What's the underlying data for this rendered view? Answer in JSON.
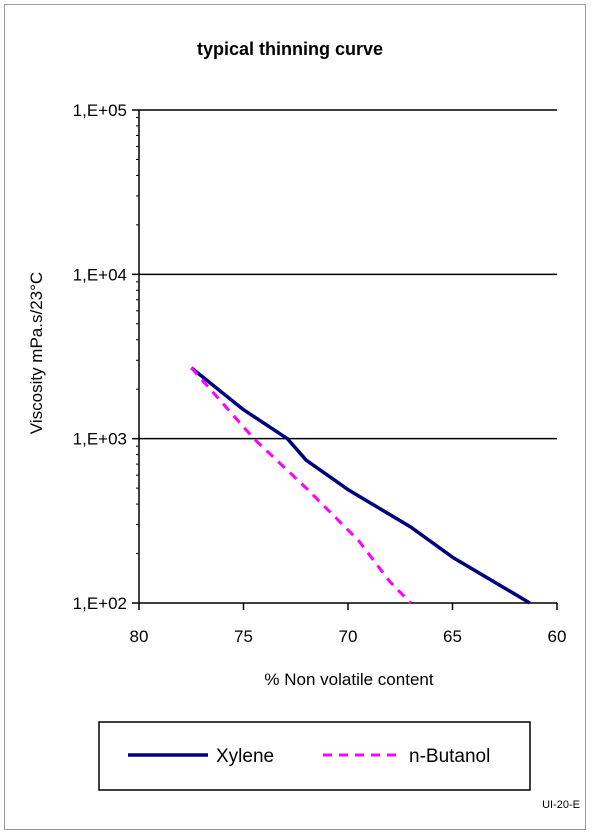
{
  "chart_data": {
    "type": "line",
    "title": "typical thinning curve",
    "xlabel": "% Non volatile content",
    "ylabel": "Viscosity mPa.s/23°C",
    "x_ticks": [
      80,
      75,
      70,
      65,
      60
    ],
    "y_ticks": [
      100,
      1000,
      10000,
      100000
    ],
    "y_tick_labels": [
      "1,E+02",
      "1,E+03",
      "1,E+04",
      "1,E+05"
    ],
    "xlim": [
      80,
      60
    ],
    "ylim": [
      100,
      100000
    ],
    "y_scale": "log",
    "x_reversed": true,
    "grid": "horizontal major gridlines",
    "legend_position": "bottom",
    "series": [
      {
        "name": "Xylene",
        "color": "#000080",
        "line_style": "solid",
        "x": [
          77.5,
          75,
          72.9,
          72,
          70,
          67,
          65,
          61.3
        ],
        "y": [
          2700,
          1500,
          1000,
          740,
          490,
          290,
          190,
          100
        ]
      },
      {
        "name": "n-Butanol",
        "color": "#ff00ff",
        "line_style": "dashed",
        "x": [
          77.5,
          74.5,
          72,
          69.5,
          68,
          67
        ],
        "y": [
          2700,
          1000,
          500,
          240,
          135,
          100
        ]
      }
    ]
  },
  "footer": {
    "code": "UI-20-E"
  }
}
